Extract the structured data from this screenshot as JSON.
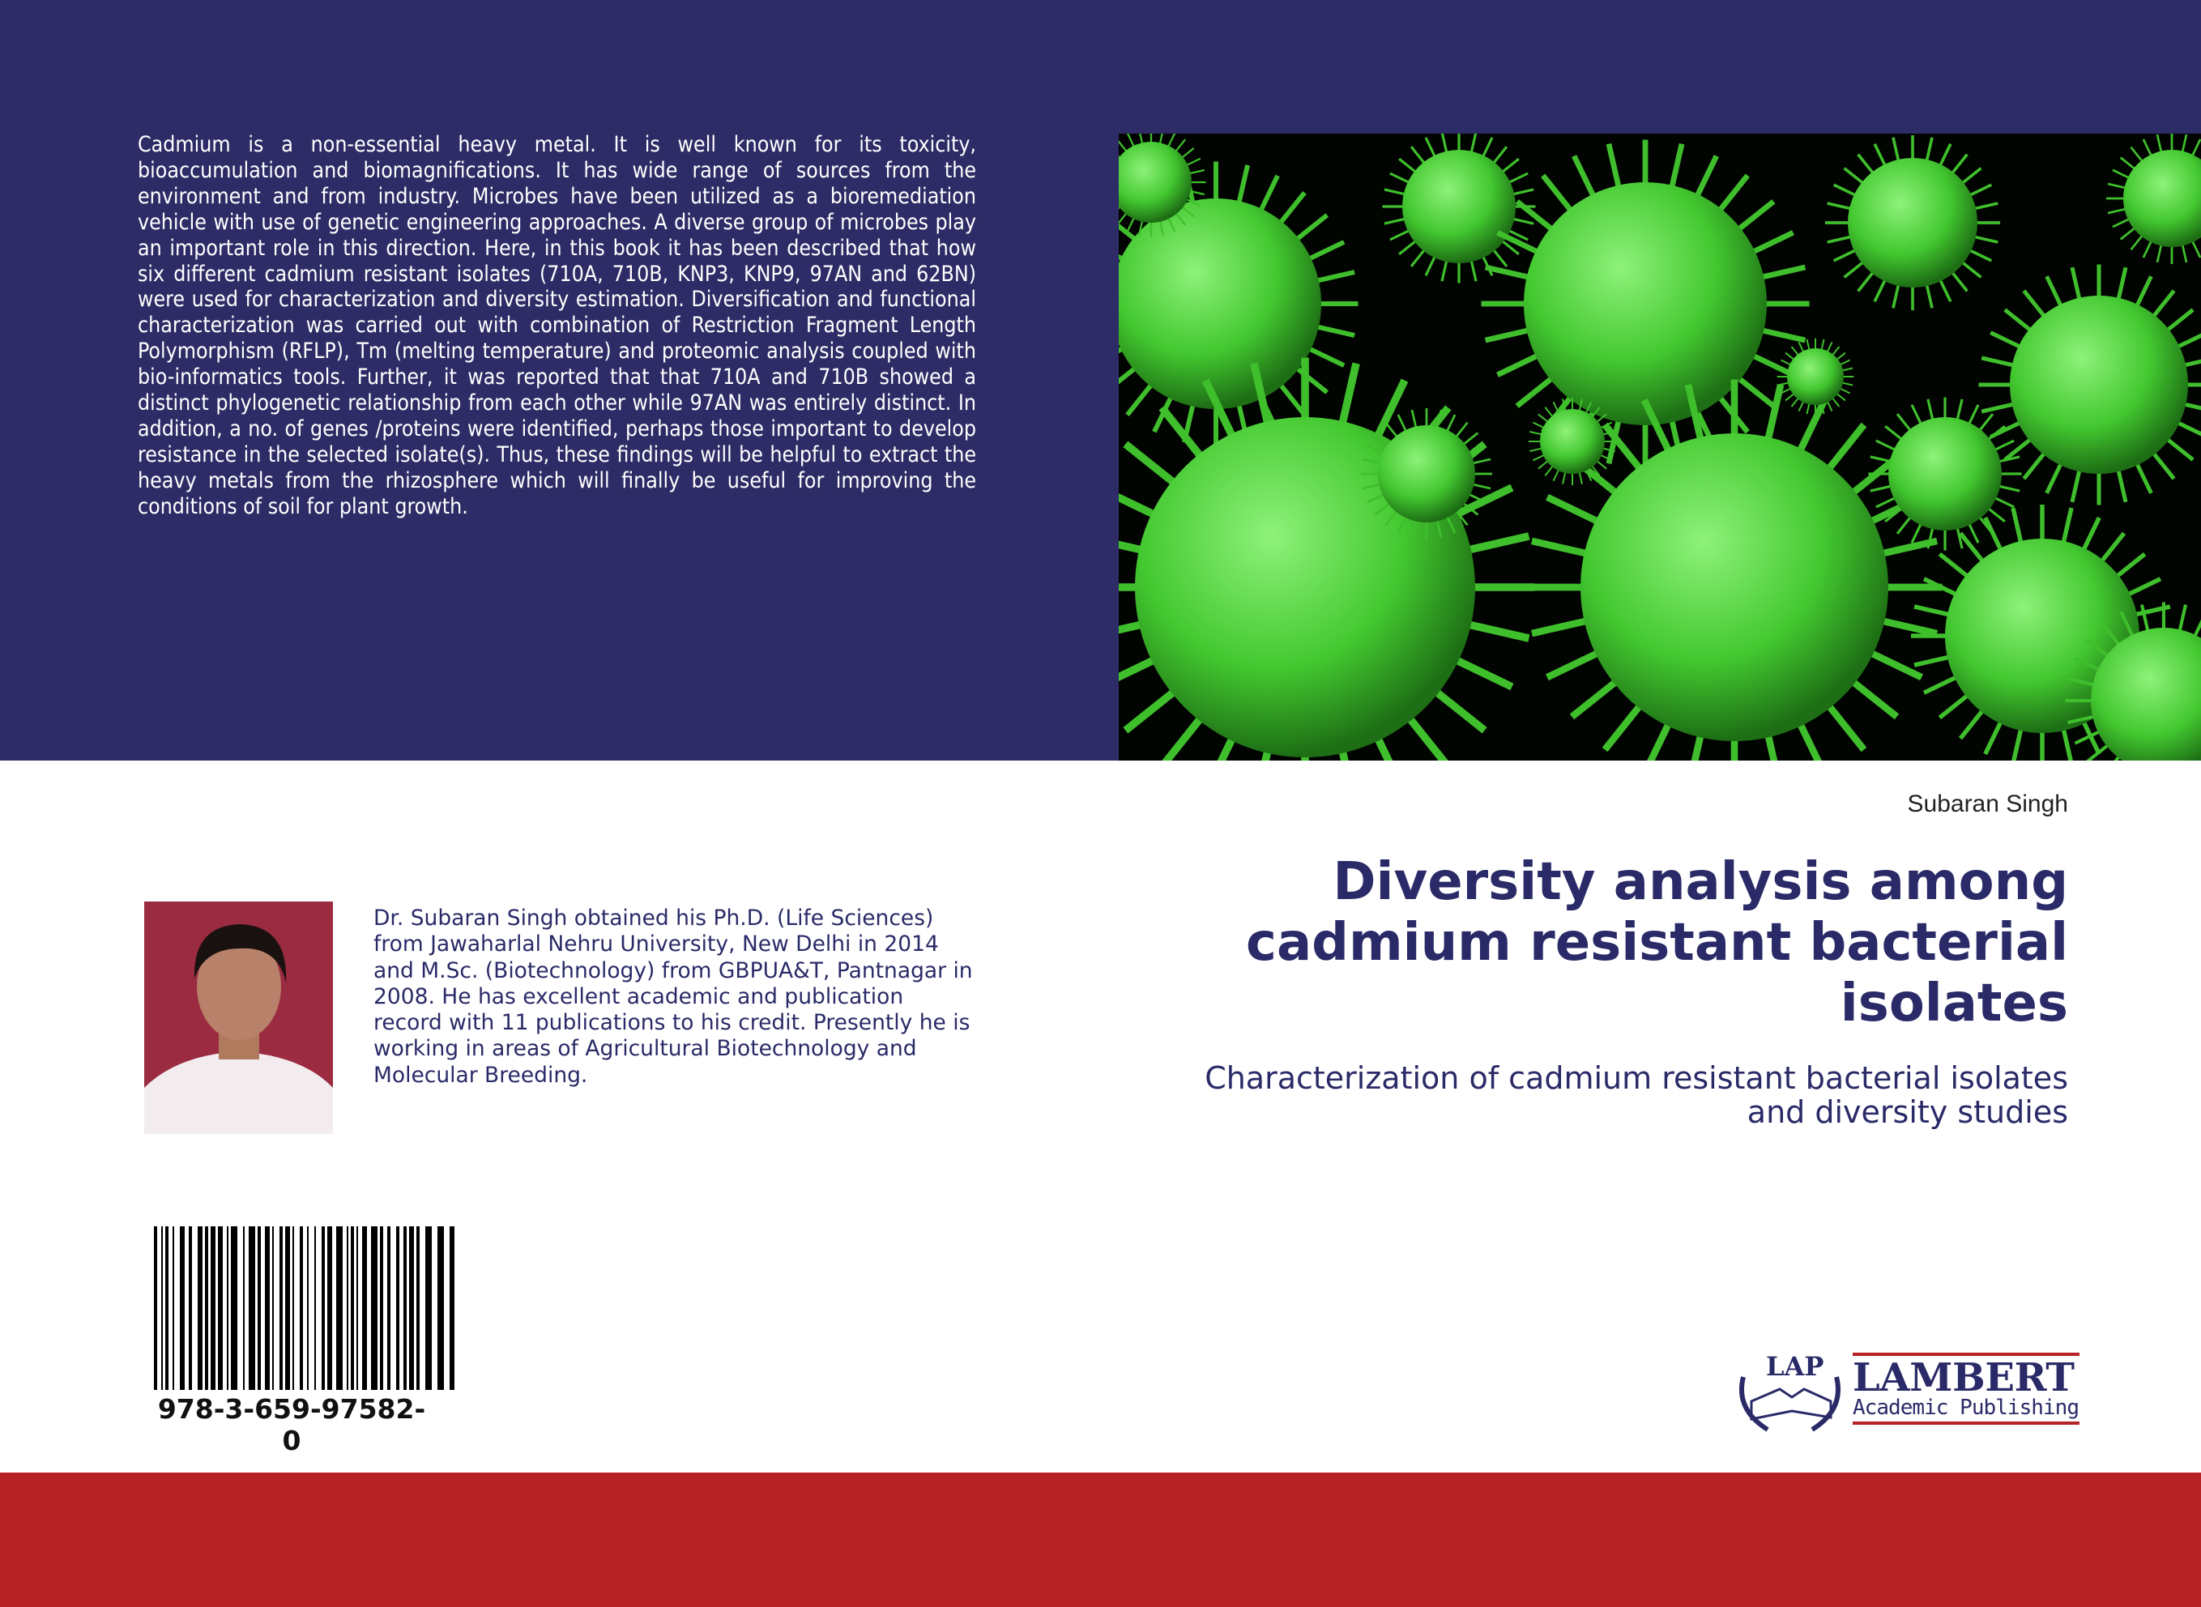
{
  "back_cover": {
    "blurb": "Cadmium is a non-essential heavy metal. It is well known for its toxicity, bioaccumulation and biomagnifications. It has wide range of sources from the environment and from industry. Microbes have been utilized as a bioremediation vehicle with use of genetic engineering approaches. A diverse group of microbes play an important role in this direction. Here, in this book it has been described that how six different cadmium resistant isolates (710A, 710B, KNP3, KNP9, 97AN and 62BN) were used for characterization and diversity estimation. Diversification and functional characterization was carried out with combination of Restriction Fragment Length Polymorphism (RFLP), Tm (melting temperature) and proteomic analysis coupled with bio-informatics tools. Further, it was reported that that 710A and 710B showed a distinct phylogenetic relationship from each other while 97AN was entirely distinct. In addition, a no. of genes /proteins were identified, perhaps those important to develop resistance in the selected isolate(s). Thus, these findings will be helpful to extract the heavy metals from the rhizosphere which will finally be useful for improving the conditions of soil for plant growth.",
    "author_bio": "Dr. Subaran Singh obtained his Ph.D. (Life Sciences) from Jawaharlal Nehru University, New Delhi in 2014 and M.Sc. (Biotechnology) from GBPUA&T, Pantnagar in 2008. He has excellent academic and publication record with 11 publications to his credit. Presently he is working in areas of Agricultural Biotechnology and Molecular Breeding.",
    "isbn": "978-3-659-97582-0"
  },
  "front_cover": {
    "author": "Subaran Singh",
    "title": "Diversity analysis among cadmium resistant bacterial isolates",
    "subtitle": "Characterization of cadmium resistant bacterial isolates and diversity studies",
    "cover_image": "green-microbes-illustration"
  },
  "publisher": {
    "logo_mark": "LAP",
    "name": "LAMBERT",
    "tagline": "Academic Publishing"
  },
  "colors": {
    "navy": "#2e2c66",
    "title_navy": "#2a2a68",
    "red_band": "#b72227",
    "microbe_green": "#4cd43a"
  }
}
